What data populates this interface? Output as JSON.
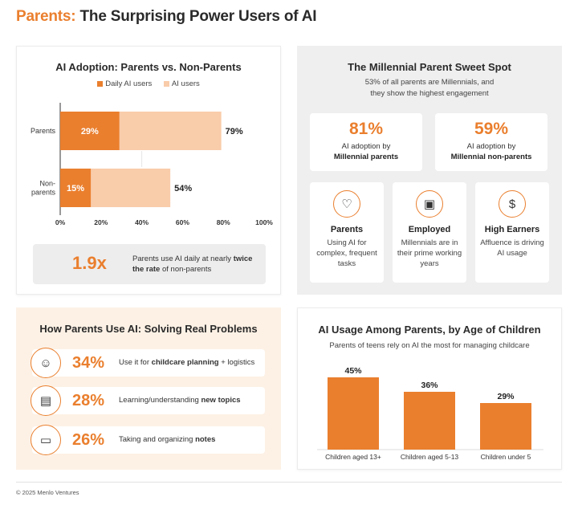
{
  "header": {
    "title_accent": "Parents:",
    "title_rest": "The Surprising Power Users of AI"
  },
  "colors": {
    "accent": "#ea7f2e",
    "light": "#f9ccaa"
  },
  "adoption": {
    "title": "AI Adoption: Parents vs. Non-Parents",
    "callout_value": "1.9x",
    "callout_text_pre": "Parents use AI daily at nearly ",
    "callout_text_bold": "twice the rate",
    "callout_text_post": " of non-parents"
  },
  "millennial": {
    "title": "The Millennial Parent Sweet Spot",
    "subtitle_1": "53% of all parents are Millennials, and",
    "subtitle_2": "they show the highest engagement",
    "stats": [
      {
        "pct": "81%",
        "line1": "AI adoption by",
        "line2": "Millennial parents"
      },
      {
        "pct": "59%",
        "line1": "AI adoption by",
        "line2": "Millennial non-parents"
      }
    ],
    "segments": [
      {
        "icon": "heart-hand-icon",
        "glyph": "♡",
        "heading": "Parents",
        "desc": "Using AI for complex, frequent tasks"
      },
      {
        "icon": "briefcase-icon",
        "glyph": "▣",
        "heading": "Employed",
        "desc": "Millennials are in their prime working years"
      },
      {
        "icon": "money-stack-icon",
        "glyph": "$",
        "heading": "High Earners",
        "desc": "Affluence is driving AI usage"
      }
    ]
  },
  "usage": {
    "title": "How Parents Use AI: Solving Real Problems",
    "rows": [
      {
        "icon": "family-icon",
        "glyph": "☺",
        "pct": "34%",
        "pre": "Use it for ",
        "bold": "childcare planning",
        "post": " + logistics"
      },
      {
        "icon": "open-book-icon",
        "glyph": "▤",
        "pct": "28%",
        "pre": "Learning/understanding ",
        "bold": "new topics",
        "post": ""
      },
      {
        "icon": "notebook-icon",
        "glyph": "▭",
        "pct": "26%",
        "pre": "Taking and organizing ",
        "bold": "notes",
        "post": ""
      }
    ]
  },
  "age_chart": {
    "title": "AI Usage Among Parents, by Age of Children",
    "subtitle": "Parents of teens rely on AI the most for managing childcare"
  },
  "footer": {
    "copyright": "© 2025 Menlo Ventures"
  },
  "chart_data": [
    {
      "type": "bar",
      "orientation": "horizontal",
      "title": "AI Adoption: Parents vs. Non-Parents",
      "categories": [
        "Parents",
        "Non-parents"
      ],
      "series": [
        {
          "name": "Daily AI users",
          "values": [
            29,
            15
          ],
          "color": "#ea7f2e"
        },
        {
          "name": "AI users",
          "values": [
            79,
            54
          ],
          "color": "#f9ccaa"
        }
      ],
      "value_labels_inner": [
        "29%",
        "15%"
      ],
      "value_labels_outer": [
        "79%",
        "54%"
      ],
      "xticks": [
        "0%",
        "20%",
        "40%",
        "60%",
        "80%",
        "100%"
      ],
      "xlim": [
        0,
        100
      ],
      "legend": "top-center",
      "grid": false
    },
    {
      "type": "bar",
      "title": "AI Usage Among Parents, by Age of Children",
      "categories": [
        "Children aged 13+",
        "Children aged 5-13",
        "Children under 5"
      ],
      "values": [
        45,
        36,
        29
      ],
      "value_labels": [
        "45%",
        "36%",
        "29%"
      ],
      "ylim": [
        0,
        45
      ],
      "grid": false
    }
  ]
}
